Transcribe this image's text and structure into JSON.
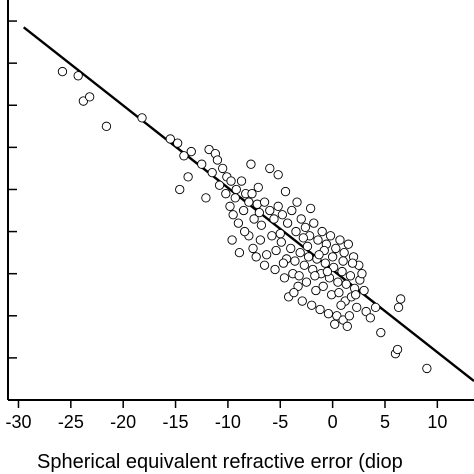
{
  "chart_data": {
    "type": "scatter",
    "title": "",
    "xlabel": "Spherical equivalent refractive error (diop",
    "ylabel": "",
    "xlim": [
      -31,
      13.5
    ],
    "ylim": [
      0,
      9.5
    ],
    "xticks": [
      -30,
      -25,
      -20,
      -15,
      -10,
      -5,
      0,
      5,
      10
    ],
    "xtick_labels": [
      "-30",
      "-25",
      "-20",
      "-15",
      "-10",
      "-5",
      "0",
      "5",
      "10"
    ],
    "yticks": [
      1,
      2,
      3,
      4,
      5,
      6,
      7,
      8,
      9
    ],
    "grid": false,
    "legend": "none",
    "fit_line": {
      "x": [
        -29.5,
        13.5
      ],
      "y": [
        8.85,
        0.45
      ]
    },
    "series": [
      {
        "marker": "open-circle",
        "points": [
          [
            -25.8,
            7.8
          ],
          [
            -24.3,
            7.7
          ],
          [
            -23.8,
            7.1
          ],
          [
            -23.2,
            7.2
          ],
          [
            -21.6,
            6.5
          ],
          [
            -18.2,
            6.7
          ],
          [
            -15.5,
            6.2
          ],
          [
            -14.8,
            6.1
          ],
          [
            -14.2,
            5.8
          ],
          [
            -13.8,
            5.3
          ],
          [
            -13.5,
            5.9
          ],
          [
            -12.1,
            4.8
          ],
          [
            -14.6,
            5.0
          ],
          [
            -12.5,
            5.6
          ],
          [
            -11.8,
            5.95
          ],
          [
            -11.2,
            5.85
          ],
          [
            -11.0,
            5.7
          ],
          [
            -10.5,
            5.5
          ],
          [
            -10.1,
            5.3
          ],
          [
            -9.7,
            5.2
          ],
          [
            -9.2,
            5.0
          ],
          [
            -8.7,
            5.2
          ],
          [
            -8.3,
            4.9
          ],
          [
            -8.0,
            4.7
          ],
          [
            -7.7,
            4.9
          ],
          [
            -7.2,
            4.65
          ],
          [
            -11.5,
            5.4
          ],
          [
            -10.8,
            5.1
          ],
          [
            -10.2,
            4.9
          ],
          [
            -9.8,
            4.6
          ],
          [
            -9.5,
            4.4
          ],
          [
            -9.0,
            4.2
          ],
          [
            -8.5,
            4.5
          ],
          [
            -7.5,
            4.3
          ],
          [
            -7.0,
            4.45
          ],
          [
            -6.5,
            4.7
          ],
          [
            -6.0,
            4.5
          ],
          [
            -5.6,
            4.3
          ],
          [
            -5.2,
            4.6
          ],
          [
            -4.8,
            4.4
          ],
          [
            -4.3,
            4.2
          ],
          [
            -3.9,
            4.5
          ],
          [
            -3.5,
            4.0
          ],
          [
            -3.0,
            4.3
          ],
          [
            -2.6,
            4.1
          ],
          [
            -2.2,
            3.9
          ],
          [
            -1.8,
            4.2
          ],
          [
            -1.4,
            3.8
          ],
          [
            -1.0,
            4.0
          ],
          [
            -0.6,
            3.7
          ],
          [
            -0.2,
            3.9
          ],
          [
            0.3,
            3.6
          ],
          [
            0.7,
            3.8
          ],
          [
            1.1,
            3.5
          ],
          [
            1.5,
            3.7
          ],
          [
            2.0,
            3.4
          ],
          [
            2.5,
            3.2
          ],
          [
            -8.9,
            3.5
          ],
          [
            -8.0,
            3.9
          ],
          [
            -7.6,
            3.6
          ],
          [
            -6.9,
            3.8
          ],
          [
            -6.3,
            3.45
          ],
          [
            -5.8,
            3.9
          ],
          [
            -5.4,
            3.55
          ],
          [
            -4.9,
            3.75
          ],
          [
            -4.4,
            3.35
          ],
          [
            -4.0,
            3.6
          ],
          [
            -3.6,
            3.3
          ],
          [
            -3.1,
            3.5
          ],
          [
            -2.7,
            3.2
          ],
          [
            -2.3,
            3.4
          ],
          [
            -1.9,
            3.1
          ],
          [
            -1.5,
            3.35
          ],
          [
            -1.1,
            3.0
          ],
          [
            -0.7,
            3.25
          ],
          [
            -0.3,
            2.9
          ],
          [
            0.1,
            3.15
          ],
          [
            0.5,
            2.8
          ],
          [
            0.9,
            3.05
          ],
          [
            1.3,
            2.75
          ],
          [
            1.7,
            2.95
          ],
          [
            2.1,
            2.65
          ],
          [
            2.6,
            2.85
          ],
          [
            3.0,
            2.6
          ],
          [
            -5.5,
            3.1
          ],
          [
            -4.6,
            2.9
          ],
          [
            -3.8,
            3.0
          ],
          [
            -3.3,
            2.7
          ],
          [
            -2.5,
            2.8
          ],
          [
            -1.6,
            2.6
          ],
          [
            -0.9,
            2.7
          ],
          [
            -0.1,
            2.5
          ],
          [
            0.6,
            2.55
          ],
          [
            1.2,
            2.35
          ],
          [
            1.8,
            2.45
          ],
          [
            2.3,
            2.2
          ],
          [
            -4.2,
            2.45
          ],
          [
            -2.9,
            2.35
          ],
          [
            -2.0,
            2.25
          ],
          [
            -1.2,
            2.15
          ],
          [
            -0.4,
            2.05
          ],
          [
            0.4,
            2.0
          ],
          [
            1.0,
            1.9
          ],
          [
            1.6,
            2.0
          ],
          [
            0.2,
            1.8
          ],
          [
            1.4,
            1.75
          ],
          [
            -6.5,
            3.2
          ],
          [
            -7.3,
            3.4
          ],
          [
            -8.4,
            4.0
          ],
          [
            -9.3,
            4.8
          ],
          [
            -3.4,
            4.7
          ],
          [
            -2.1,
            4.55
          ],
          [
            -0.8,
            3.55
          ],
          [
            1.0,
            3.3
          ],
          [
            1.9,
            3.25
          ],
          [
            2.8,
            3.0
          ],
          [
            -6.0,
            5.5
          ],
          [
            -7.8,
            5.6
          ],
          [
            -5.2,
            5.35
          ],
          [
            -4.5,
            4.95
          ],
          [
            -6.8,
            4.15
          ],
          [
            -5.0,
            3.95
          ],
          [
            -2.4,
            3.65
          ],
          [
            -1.3,
            3.45
          ],
          [
            0.0,
            3.4
          ],
          [
            3.2,
            2.1
          ],
          [
            3.6,
            1.95
          ],
          [
            4.1,
            2.2
          ],
          [
            4.6,
            1.6
          ],
          [
            6.0,
            1.1
          ],
          [
            6.3,
            2.2
          ],
          [
            6.5,
            2.4
          ],
          [
            6.2,
            1.2
          ],
          [
            9.0,
            0.75
          ],
          [
            -3.7,
            2.55
          ],
          [
            -2.8,
            3.85
          ],
          [
            -1.7,
            2.95
          ],
          [
            0.8,
            2.25
          ],
          [
            2.2,
            2.5
          ],
          [
            -9.6,
            3.8
          ],
          [
            -7.1,
            5.05
          ],
          [
            -4.7,
            3.25
          ],
          [
            -3.2,
            2.95
          ],
          [
            -0.5,
            3.05
          ]
        ]
      }
    ]
  }
}
